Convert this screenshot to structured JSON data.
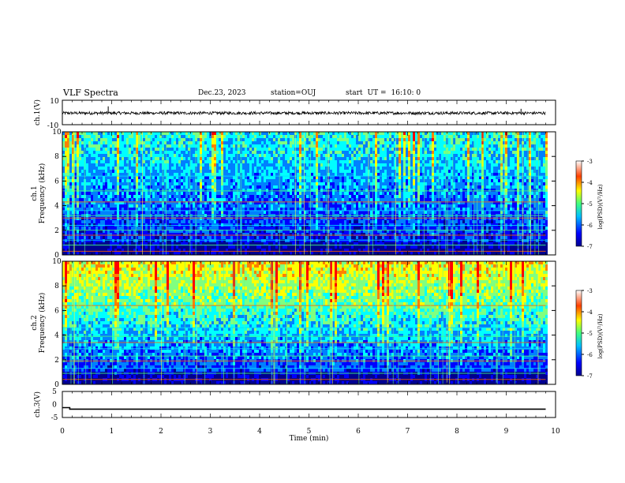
{
  "header": {
    "title": "VLF Spectra",
    "date": "Dec.23, 2023",
    "station": "station=OUJ",
    "start_label": "start",
    "ut_label": "UT =",
    "start_time": "16:10: 0"
  },
  "chart_data": [
    {
      "type": "line",
      "panel": "ch1-waveform",
      "ylabel": "ch.1(V)",
      "ylim": [
        -10,
        10
      ],
      "y_ticks": [
        "10",
        "-10"
      ],
      "x": [
        0,
        9.8
      ],
      "y_center": -0.5,
      "y_noise_amplitude": 1.2,
      "spikes": [
        {
          "x": 0.93,
          "y": 5
        },
        {
          "x": 9.3,
          "y": 3
        }
      ]
    },
    {
      "type": "heatmap",
      "panel": "ch1-spectrogram",
      "ylabel": "ch.1\nFrequency  (kHz)",
      "ylim": [
        0,
        10
      ],
      "y_ticks": [
        "0",
        "2",
        "4",
        "6",
        "8",
        "10"
      ],
      "xlim": [
        0,
        10
      ],
      "data_end_min": 9.8,
      "colorbar": {
        "label": "log(PSD)(V²/Hz)",
        "range": [
          -7,
          -3
        ],
        "ticks": [
          "-3",
          "-4",
          "-5",
          "-6",
          "-7"
        ]
      },
      "noise_lines_khz": [
        0.3,
        0.8,
        1.2,
        1.6,
        2.0,
        2.4,
        3.0,
        3.2,
        3.6,
        4.3,
        5.2,
        6.4
      ]
    },
    {
      "type": "heatmap",
      "panel": "ch2-spectrogram",
      "ylabel": "ch.2\nFrequency  (kHz)",
      "ylim": [
        0,
        10
      ],
      "y_ticks": [
        "0",
        "2",
        "4",
        "6",
        "8",
        "10"
      ],
      "xlim": [
        0,
        10
      ],
      "data_end_min": 9.8,
      "colorbar": {
        "label": "log(PSD)(V²/Hz)",
        "range": [
          -7,
          -3
        ],
        "ticks": [
          "-3",
          "-4",
          "-5",
          "-6",
          "-7"
        ]
      },
      "noise_lines_khz": [
        0.4,
        0.9,
        1.3,
        1.9,
        2.3,
        2.9,
        3.4,
        3.9,
        4.6,
        6.4
      ]
    },
    {
      "type": "line",
      "panel": "ch3-waveform",
      "ylabel": "ch.3(V)",
      "ylim": [
        -5,
        5
      ],
      "y_ticks": [
        "5",
        "0",
        "-5"
      ],
      "x": [
        0,
        0.15,
        0.15,
        9.8
      ],
      "y": [
        -1.2,
        -1.2,
        -1.8,
        -1.8
      ],
      "xlabel": "Time  (min)",
      "x_ticks": [
        "0",
        "1",
        "2",
        "3",
        "4",
        "5",
        "6",
        "7",
        "8",
        "9",
        "10"
      ]
    }
  ],
  "colors": {
    "jet": [
      "#00008f",
      "#0000ff",
      "#0080ff",
      "#00ffff",
      "#80ff80",
      "#ffff00",
      "#ff8000",
      "#ff0000",
      "#800000"
    ]
  }
}
